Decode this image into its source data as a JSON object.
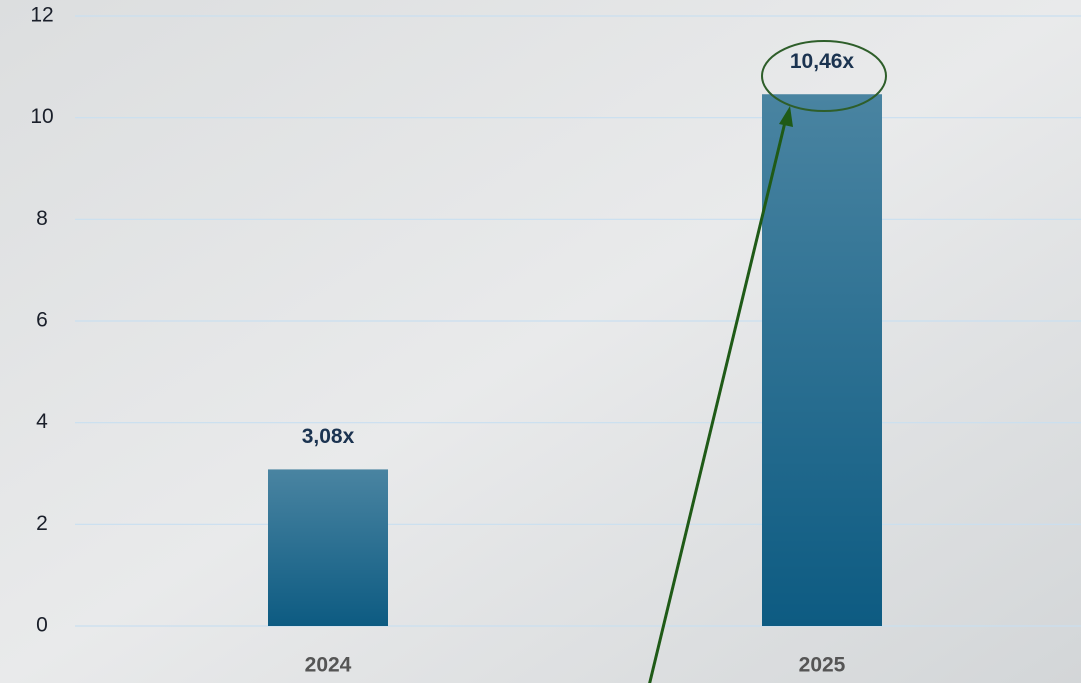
{
  "chart_data": {
    "type": "bar",
    "categories": [
      "2024",
      "2025"
    ],
    "values": [
      3.08,
      10.46
    ],
    "value_labels": [
      "3,08x",
      "10,46x"
    ],
    "color": "#0d5b82",
    "ylim": [
      0,
      12
    ],
    "yticks": [
      0,
      2,
      4,
      6,
      8,
      10,
      12
    ],
    "grid": true
  }
}
